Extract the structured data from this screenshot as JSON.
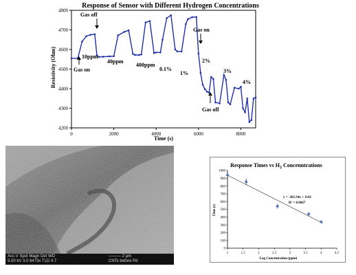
{
  "charts": {
    "response": {
      "title": "Response of Sensor with Different Hydrogen Concentrations",
      "xlabel": "Time (s)",
      "ylabel": "Resistivity (Ohm)",
      "xticks": [
        "0",
        "2000",
        "4000",
        "6000",
        "8000"
      ],
      "yticks": [
        "4200",
        "4300",
        "4400",
        "4500",
        "4600",
        "4700",
        "4800"
      ],
      "annotations": {
        "gas_off_top": "Gas off",
        "gas_on_left": "Gas on",
        "c10": "10ppm",
        "c40": "40ppm",
        "c400": "400ppm",
        "c01": "0.1%",
        "c1": "1%",
        "gas_on_right": "Gas on",
        "c2": "2%",
        "c3": "3%",
        "c4": "4%",
        "gas_off_bottom": "Gas off"
      }
    },
    "times": {
      "title_pre": "Response Times  vs H",
      "title_sub": "2",
      "title_post": " Concenntrations",
      "xlabel": "Log Concentration (ppm)",
      "ylabel": "Time (s)",
      "xticks": [
        "1",
        "1.5",
        "2",
        "2.5",
        "3",
        "3.5",
        "4",
        "4.5"
      ],
      "yticks": [
        "0",
        "100",
        "200",
        "300",
        "400",
        "500",
        "600",
        "700",
        "800",
        "900",
        "1000"
      ],
      "equation": "y = -202.34x + 1142",
      "r2": "R² = 0.9667"
    }
  },
  "chart_data": [
    {
      "type": "line",
      "title": "Response of Sensor with Different Hydrogen Concentrations",
      "xlabel": "Time (s)",
      "ylabel": "Resistivity (Ohm)",
      "xlim": [
        0,
        8700
      ],
      "ylim": [
        4200,
        4800
      ],
      "grid": false,
      "series": [
        {
          "x": [
            0,
            300,
            500,
            700,
            900,
            1100,
            1200,
            1300,
            1500,
            1800,
            2000,
            2200,
            2500,
            2700,
            2900,
            3000,
            3200,
            3300,
            3500,
            3700,
            3900,
            4000,
            4200,
            4300,
            4500,
            4700,
            4900,
            5000,
            5200,
            5400,
            5500,
            5700,
            5900,
            6000,
            6100,
            6200,
            6300,
            6400,
            6500,
            6600,
            6700,
            6800,
            7000,
            7200,
            7300,
            7400,
            7500,
            7700,
            7900,
            8000,
            8100,
            8200,
            8300,
            8400,
            8500,
            8600,
            8700
          ],
          "y": [
            4555,
            4555,
            4640,
            4668,
            4675,
            4678,
            4570,
            4562,
            4563,
            4565,
            4566,
            4672,
            4690,
            4698,
            4578,
            4572,
            4572,
            4575,
            4738,
            4745,
            4582,
            4585,
            4585,
            4650,
            4760,
            4775,
            4600,
            4590,
            4590,
            4730,
            4755,
            4765,
            4766,
            4580,
            4480,
            4420,
            4398,
            4385,
            4380,
            4460,
            4450,
            4330,
            4325,
            4470,
            4445,
            4330,
            4320,
            4405,
            4400,
            4410,
            4300,
            4280,
            4350,
            4230,
            4240,
            4350,
            4355
          ]
        }
      ]
    },
    {
      "type": "scatter",
      "title": "Response Times  vs H2 Concenntrations",
      "xlabel": "Log Concentration (ppm)",
      "ylabel": "Time (s)",
      "xlim": [
        1,
        4.5
      ],
      "ylim": [
        0,
        1000
      ],
      "grid": false,
      "trendline": {
        "slope": -202.34,
        "intercept": 1142,
        "r2": 0.9667
      },
      "series": [
        {
          "x": [
            1,
            1.6,
            2.6,
            3.6,
            4
          ],
          "y": [
            940,
            855,
            540,
            440,
            340
          ],
          "error": [
            40,
            40,
            30,
            25,
            10
          ]
        }
      ]
    }
  ]
}
